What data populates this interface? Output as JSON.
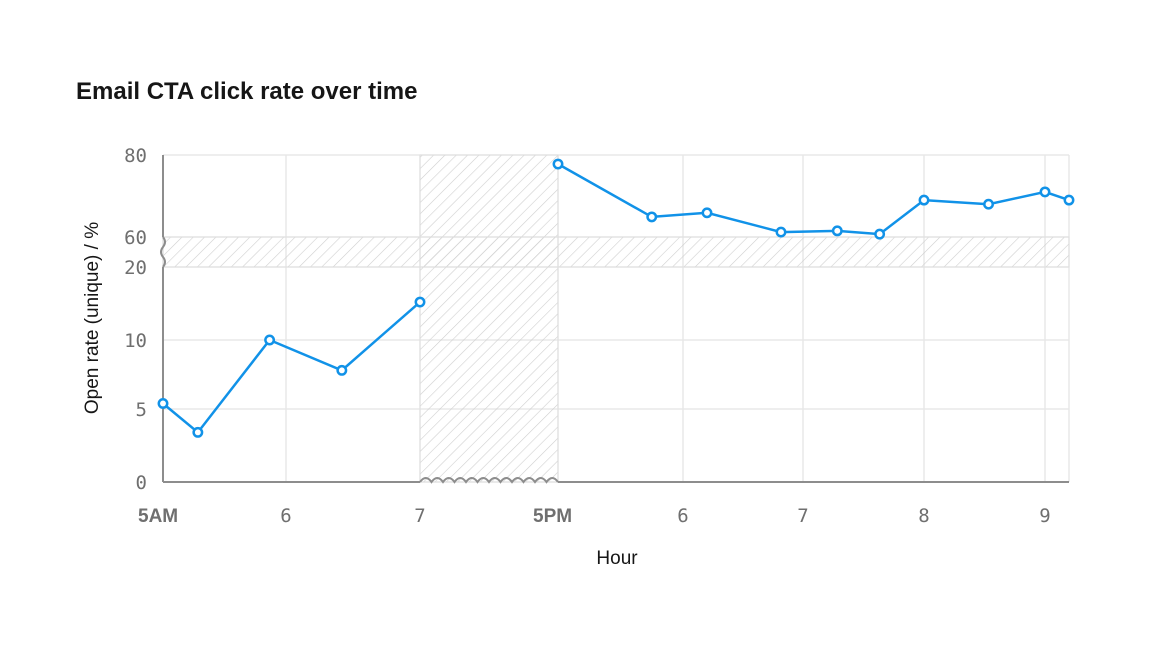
{
  "chart_data": {
    "type": "line",
    "title": "Email CTA click rate over time",
    "xlabel": "Hour",
    "ylabel": "Open rate (unique) / %",
    "y_scale": "broken",
    "y_segments": [
      {
        "range": [
          0,
          20
        ],
        "ticks": [
          0,
          5,
          10,
          20
        ]
      },
      {
        "range": [
          60,
          80
        ],
        "ticks": [
          60,
          80
        ]
      }
    ],
    "y_break": [
      20,
      60
    ],
    "x_segments": [
      {
        "range": [
          "05:00",
          "07:00"
        ],
        "ticks": [
          {
            "t": "05:00",
            "label": "5AM",
            "bold": true
          },
          {
            "t": "06:00",
            "label": "6"
          },
          {
            "t": "07:00",
            "label": "7"
          }
        ]
      },
      {
        "range": [
          "17:00",
          "21:12"
        ],
        "ticks": [
          {
            "t": "17:00",
            "label": "5PM",
            "bold": true
          },
          {
            "t": "18:00",
            "label": "6"
          },
          {
            "t": "19:00",
            "label": "7"
          },
          {
            "t": "20:00",
            "label": "8"
          },
          {
            "t": "21:00",
            "label": "9"
          }
        ]
      }
    ],
    "x_break": [
      "07:00",
      "17:00"
    ],
    "grid": true,
    "color": "#1192e8",
    "series": [
      {
        "points": [
          {
            "x": "05:00",
            "y": 5.4
          },
          {
            "x": "05:17",
            "y": 3.4
          },
          {
            "x": "05:52",
            "y": 10
          },
          {
            "x": "06:25",
            "y": 7.8
          },
          {
            "x": "07:00",
            "y": 15.2
          },
          {
            "x": "17:00",
            "y": 77.8
          },
          {
            "x": "17:45",
            "y": 64.9
          },
          {
            "x": "18:12",
            "y": 65.9
          },
          {
            "x": "18:49",
            "y": 61.2
          },
          {
            "x": "19:17",
            "y": 61.5
          },
          {
            "x": "19:38",
            "y": 60.7
          },
          {
            "x": "20:00",
            "y": 69
          },
          {
            "x": "20:32",
            "y": 68
          },
          {
            "x": "21:00",
            "y": 71
          },
          {
            "x": "21:12",
            "y": 69
          }
        ]
      }
    ]
  }
}
